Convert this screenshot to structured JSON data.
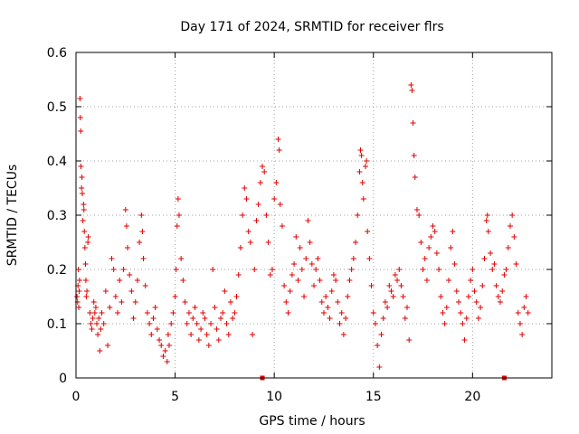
{
  "chart_data": {
    "type": "scatter",
    "title": "Day 171 of 2024, SRMTID for receiver flrs",
    "xlabel": "GPS time / hours",
    "ylabel": "SRMTID / TECUs",
    "xlim": [
      0,
      24
    ],
    "ylim": [
      0,
      0.6
    ],
    "xticks": [
      0,
      5,
      10,
      15,
      20
    ],
    "xtick_labels": [
      "0",
      "5",
      "10",
      "15",
      "20"
    ],
    "yticks": [
      0,
      0.1,
      0.2,
      0.3,
      0.4,
      0.5,
      0.6
    ],
    "ytick_labels": [
      "0",
      "0.1",
      "0.2",
      "0.3",
      "0.4",
      "0.5",
      "0.6"
    ],
    "grid": true,
    "marker": "+",
    "color": "#e00000",
    "series": [
      {
        "name": "SRMTID",
        "points": [
          [
            0.05,
            0.15
          ],
          [
            0.08,
            0.14
          ],
          [
            0.1,
            0.17
          ],
          [
            0.12,
            0.2
          ],
          [
            0.14,
            0.13
          ],
          [
            0.16,
            0.16
          ],
          [
            0.18,
            0.18
          ],
          [
            0.2,
            0.515
          ],
          [
            0.22,
            0.48
          ],
          [
            0.24,
            0.455
          ],
          [
            0.25,
            0.39
          ],
          [
            0.28,
            0.35
          ],
          [
            0.3,
            0.37
          ],
          [
            0.32,
            0.34
          ],
          [
            0.35,
            0.29
          ],
          [
            0.38,
            0.32
          ],
          [
            0.4,
            0.31
          ],
          [
            0.42,
            0.27
          ],
          [
            0.45,
            0.24
          ],
          [
            0.48,
            0.21
          ],
          [
            0.5,
            0.18
          ],
          [
            0.52,
            0.15
          ],
          [
            0.55,
            0.16
          ],
          [
            0.6,
            0.25
          ],
          [
            0.62,
            0.26
          ],
          [
            0.7,
            0.12
          ],
          [
            0.75,
            0.1
          ],
          [
            0.8,
            0.09
          ],
          [
            0.85,
            0.11
          ],
          [
            0.9,
            0.14
          ],
          [
            0.95,
            0.12
          ],
          [
            1.0,
            0.13
          ],
          [
            1.05,
            0.1
          ],
          [
            1.1,
            0.08
          ],
          [
            1.15,
            0.11
          ],
          [
            1.2,
            0.05
          ],
          [
            1.25,
            0.09
          ],
          [
            1.3,
            0.12
          ],
          [
            1.4,
            0.1
          ],
          [
            1.5,
            0.16
          ],
          [
            1.6,
            0.06
          ],
          [
            1.7,
            0.13
          ],
          [
            1.8,
            0.22
          ],
          [
            1.9,
            0.2
          ],
          [
            2.0,
            0.15
          ],
          [
            2.1,
            0.12
          ],
          [
            2.2,
            0.18
          ],
          [
            2.3,
            0.14
          ],
          [
            2.4,
            0.2
          ],
          [
            2.5,
            0.31
          ],
          [
            2.55,
            0.28
          ],
          [
            2.6,
            0.24
          ],
          [
            2.7,
            0.19
          ],
          [
            2.8,
            0.16
          ],
          [
            2.9,
            0.11
          ],
          [
            3.0,
            0.14
          ],
          [
            3.1,
            0.18
          ],
          [
            3.2,
            0.25
          ],
          [
            3.3,
            0.3
          ],
          [
            3.35,
            0.27
          ],
          [
            3.4,
            0.22
          ],
          [
            3.5,
            0.17
          ],
          [
            3.6,
            0.12
          ],
          [
            3.7,
            0.1
          ],
          [
            3.8,
            0.08
          ],
          [
            3.9,
            0.11
          ],
          [
            4.0,
            0.13
          ],
          [
            4.1,
            0.09
          ],
          [
            4.2,
            0.07
          ],
          [
            4.3,
            0.06
          ],
          [
            4.4,
            0.04
          ],
          [
            4.5,
            0.05
          ],
          [
            4.6,
            0.03
          ],
          [
            4.65,
            0.08
          ],
          [
            4.7,
            0.06
          ],
          [
            4.8,
            0.1
          ],
          [
            4.9,
            0.12
          ],
          [
            5.0,
            0.15
          ],
          [
            5.05,
            0.2
          ],
          [
            5.1,
            0.28
          ],
          [
            5.15,
            0.33
          ],
          [
            5.2,
            0.3
          ],
          [
            5.3,
            0.22
          ],
          [
            5.4,
            0.18
          ],
          [
            5.5,
            0.14
          ],
          [
            5.6,
            0.1
          ],
          [
            5.7,
            0.12
          ],
          [
            5.8,
            0.08
          ],
          [
            5.9,
            0.11
          ],
          [
            6.0,
            0.13
          ],
          [
            6.1,
            0.1
          ],
          [
            6.2,
            0.07
          ],
          [
            6.3,
            0.09
          ],
          [
            6.4,
            0.12
          ],
          [
            6.5,
            0.11
          ],
          [
            6.6,
            0.08
          ],
          [
            6.7,
            0.06
          ],
          [
            6.8,
            0.1
          ],
          [
            6.9,
            0.2
          ],
          [
            7.0,
            0.13
          ],
          [
            7.1,
            0.09
          ],
          [
            7.2,
            0.07
          ],
          [
            7.3,
            0.11
          ],
          [
            7.4,
            0.12
          ],
          [
            7.5,
            0.16
          ],
          [
            7.6,
            0.1
          ],
          [
            7.7,
            0.08
          ],
          [
            7.8,
            0.14
          ],
          [
            7.9,
            0.11
          ],
          [
            8.0,
            0.12
          ],
          [
            8.1,
            0.15
          ],
          [
            8.2,
            0.19
          ],
          [
            8.3,
            0.24
          ],
          [
            8.4,
            0.3
          ],
          [
            8.5,
            0.35
          ],
          [
            8.6,
            0.33
          ],
          [
            8.7,
            0.27
          ],
          [
            8.8,
            0.25
          ],
          [
            8.9,
            0.08
          ],
          [
            9.0,
            0.2
          ],
          [
            9.1,
            0.29
          ],
          [
            9.2,
            0.32
          ],
          [
            9.3,
            0.36
          ],
          [
            9.4,
            0.39
          ],
          [
            9.5,
            0.38
          ],
          [
            9.6,
            0.3
          ],
          [
            9.7,
            0.25
          ],
          [
            9.8,
            0.19
          ],
          [
            9.9,
            0.2
          ],
          [
            10.0,
            0.33
          ],
          [
            10.1,
            0.36
          ],
          [
            10.2,
            0.44
          ],
          [
            10.25,
            0.42
          ],
          [
            10.3,
            0.32
          ],
          [
            10.4,
            0.28
          ],
          [
            10.5,
            0.17
          ],
          [
            10.6,
            0.14
          ],
          [
            10.7,
            0.12
          ],
          [
            10.8,
            0.16
          ],
          [
            10.9,
            0.19
          ],
          [
            11.0,
            0.21
          ],
          [
            11.1,
            0.26
          ],
          [
            11.2,
            0.18
          ],
          [
            11.3,
            0.24
          ],
          [
            11.4,
            0.2
          ],
          [
            11.5,
            0.15
          ],
          [
            11.6,
            0.22
          ],
          [
            11.7,
            0.29
          ],
          [
            11.8,
            0.25
          ],
          [
            11.9,
            0.21
          ],
          [
            12.0,
            0.17
          ],
          [
            12.1,
            0.2
          ],
          [
            12.2,
            0.22
          ],
          [
            12.3,
            0.18
          ],
          [
            12.4,
            0.14
          ],
          [
            12.5,
            0.12
          ],
          [
            12.6,
            0.15
          ],
          [
            12.7,
            0.13
          ],
          [
            12.8,
            0.11
          ],
          [
            12.9,
            0.16
          ],
          [
            13.0,
            0.19
          ],
          [
            13.1,
            0.18
          ],
          [
            13.2,
            0.14
          ],
          [
            13.3,
            0.1
          ],
          [
            13.4,
            0.12
          ],
          [
            13.5,
            0.08
          ],
          [
            13.6,
            0.11
          ],
          [
            13.7,
            0.15
          ],
          [
            13.8,
            0.18
          ],
          [
            13.9,
            0.2
          ],
          [
            14.0,
            0.22
          ],
          [
            14.1,
            0.25
          ],
          [
            14.2,
            0.3
          ],
          [
            14.3,
            0.38
          ],
          [
            14.35,
            0.42
          ],
          [
            14.4,
            0.41
          ],
          [
            14.45,
            0.36
          ],
          [
            14.5,
            0.33
          ],
          [
            14.6,
            0.39
          ],
          [
            14.65,
            0.4
          ],
          [
            14.7,
            0.27
          ],
          [
            14.8,
            0.22
          ],
          [
            14.9,
            0.17
          ],
          [
            15.0,
            0.12
          ],
          [
            15.1,
            0.1
          ],
          [
            15.2,
            0.06
          ],
          [
            15.3,
            0.02
          ],
          [
            15.4,
            0.08
          ],
          [
            15.5,
            0.11
          ],
          [
            15.6,
            0.14
          ],
          [
            15.7,
            0.13
          ],
          [
            15.8,
            0.17
          ],
          [
            15.9,
            0.16
          ],
          [
            16.0,
            0.15
          ],
          [
            16.1,
            0.19
          ],
          [
            16.2,
            0.18
          ],
          [
            16.3,
            0.2
          ],
          [
            16.4,
            0.17
          ],
          [
            16.5,
            0.15
          ],
          [
            16.6,
            0.11
          ],
          [
            16.7,
            0.13
          ],
          [
            16.8,
            0.07
          ],
          [
            16.9,
            0.54
          ],
          [
            16.95,
            0.53
          ],
          [
            17.0,
            0.47
          ],
          [
            17.05,
            0.41
          ],
          [
            17.1,
            0.37
          ],
          [
            17.2,
            0.31
          ],
          [
            17.3,
            0.3
          ],
          [
            17.4,
            0.25
          ],
          [
            17.5,
            0.2
          ],
          [
            17.6,
            0.22
          ],
          [
            17.7,
            0.18
          ],
          [
            17.8,
            0.24
          ],
          [
            17.9,
            0.26
          ],
          [
            18.0,
            0.28
          ],
          [
            18.1,
            0.27
          ],
          [
            18.2,
            0.23
          ],
          [
            18.3,
            0.2
          ],
          [
            18.4,
            0.15
          ],
          [
            18.5,
            0.12
          ],
          [
            18.6,
            0.1
          ],
          [
            18.7,
            0.13
          ],
          [
            18.8,
            0.18
          ],
          [
            18.9,
            0.24
          ],
          [
            19.0,
            0.27
          ],
          [
            19.1,
            0.21
          ],
          [
            19.2,
            0.16
          ],
          [
            19.3,
            0.14
          ],
          [
            19.4,
            0.12
          ],
          [
            19.5,
            0.1
          ],
          [
            19.6,
            0.07
          ],
          [
            19.7,
            0.11
          ],
          [
            19.8,
            0.15
          ],
          [
            19.9,
            0.18
          ],
          [
            20.0,
            0.2
          ],
          [
            20.1,
            0.16
          ],
          [
            20.2,
            0.14
          ],
          [
            20.3,
            0.11
          ],
          [
            20.4,
            0.13
          ],
          [
            20.5,
            0.17
          ],
          [
            20.6,
            0.22
          ],
          [
            20.7,
            0.29
          ],
          [
            20.75,
            0.3
          ],
          [
            20.8,
            0.27
          ],
          [
            20.9,
            0.23
          ],
          [
            21.0,
            0.2
          ],
          [
            21.1,
            0.21
          ],
          [
            21.2,
            0.17
          ],
          [
            21.3,
            0.15
          ],
          [
            21.4,
            0.14
          ],
          [
            21.5,
            0.16
          ],
          [
            21.6,
            0.19
          ],
          [
            21.7,
            0.2
          ],
          [
            21.8,
            0.24
          ],
          [
            21.9,
            0.28
          ],
          [
            22.0,
            0.3
          ],
          [
            22.1,
            0.26
          ],
          [
            22.2,
            0.21
          ],
          [
            22.3,
            0.12
          ],
          [
            22.4,
            0.1
          ],
          [
            22.5,
            0.08
          ],
          [
            22.6,
            0.13
          ],
          [
            22.7,
            0.15
          ],
          [
            22.8,
            0.12
          ]
        ]
      }
    ],
    "gap_markers_x": [
      9.4,
      21.6
    ]
  }
}
